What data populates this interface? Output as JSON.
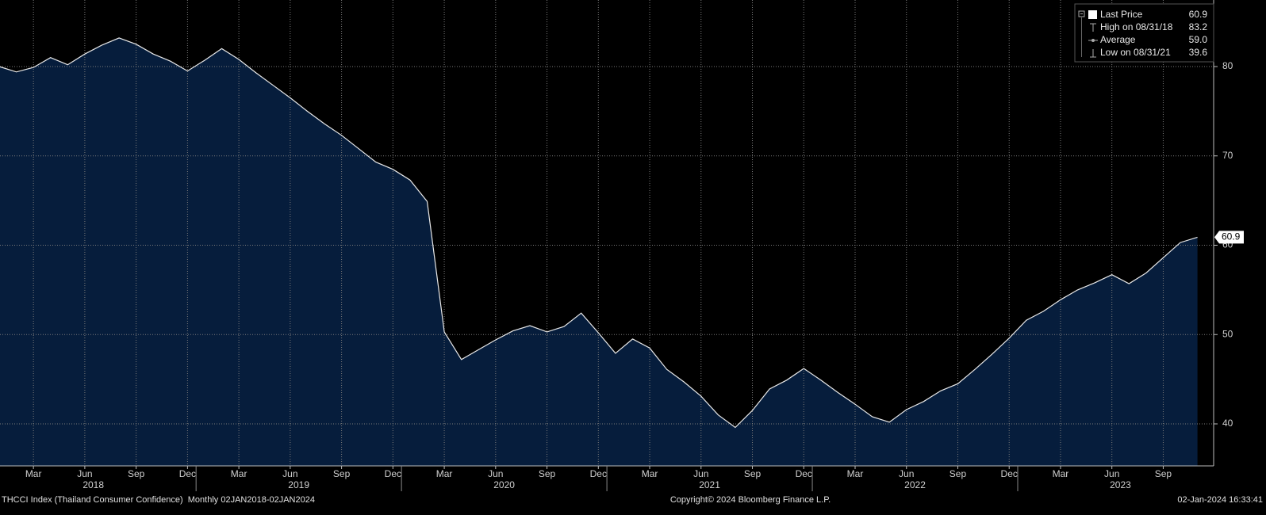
{
  "chart_data": {
    "type": "area",
    "x": [
      "2018-01",
      "2018-02",
      "2018-03",
      "2018-04",
      "2018-05",
      "2018-06",
      "2018-07",
      "2018-08",
      "2018-09",
      "2018-10",
      "2018-11",
      "2018-12",
      "2019-01",
      "2019-02",
      "2019-03",
      "2019-04",
      "2019-05",
      "2019-06",
      "2019-07",
      "2019-08",
      "2019-09",
      "2019-10",
      "2019-11",
      "2019-12",
      "2020-01",
      "2020-02",
      "2020-03",
      "2020-04",
      "2020-05",
      "2020-06",
      "2020-07",
      "2020-08",
      "2020-09",
      "2020-10",
      "2020-11",
      "2020-12",
      "2021-01",
      "2021-02",
      "2021-03",
      "2021-04",
      "2021-05",
      "2021-06",
      "2021-07",
      "2021-08",
      "2021-09",
      "2021-10",
      "2021-11",
      "2021-12",
      "2022-01",
      "2022-02",
      "2022-03",
      "2022-04",
      "2022-05",
      "2022-06",
      "2022-07",
      "2022-08",
      "2022-09",
      "2022-10",
      "2022-11",
      "2022-12",
      "2023-01",
      "2023-02",
      "2023-03",
      "2023-04",
      "2023-05",
      "2023-06",
      "2023-07",
      "2023-08",
      "2023-09",
      "2023-10",
      "2023-11"
    ],
    "series": [
      {
        "name": "Last Price",
        "color": "#e8e8e8",
        "fill": "#061d3c",
        "values": [
          80.0,
          79.4,
          79.9,
          81.0,
          80.2,
          81.4,
          82.4,
          83.2,
          82.5,
          81.4,
          80.6,
          79.5,
          80.7,
          82.0,
          80.8,
          79.3,
          77.9,
          76.5,
          75.0,
          73.6,
          72.3,
          70.8,
          69.3,
          68.5,
          67.3,
          64.9,
          50.3,
          47.2,
          48.3,
          49.4,
          50.4,
          51.0,
          50.3,
          50.9,
          52.4,
          50.2,
          47.9,
          49.5,
          48.5,
          46.1,
          44.7,
          43.1,
          41.0,
          39.6,
          41.5,
          43.9,
          44.9,
          46.2,
          44.9,
          43.5,
          42.2,
          40.8,
          40.2,
          41.6,
          42.5,
          43.7,
          44.5,
          46.1,
          47.8,
          49.6,
          51.6,
          52.6,
          53.9,
          55.0,
          55.8,
          56.7,
          55.7,
          56.9,
          58.6,
          60.3,
          60.9
        ]
      }
    ],
    "ylim": [
      35.3,
      87.45
    ],
    "yticks": [
      40,
      50,
      60,
      70,
      80
    ],
    "grid": true,
    "xticks": [
      {
        "value": "2018-03",
        "label": "Mar"
      },
      {
        "value": "2018-06",
        "label": "Jun"
      },
      {
        "value": "2018-09",
        "label": "Sep"
      },
      {
        "value": "2018-12",
        "label": "Dec"
      },
      {
        "value": "2019-03",
        "label": "Mar"
      },
      {
        "value": "2019-06",
        "label": "Jun"
      },
      {
        "value": "2019-09",
        "label": "Sep"
      },
      {
        "value": "2019-12",
        "label": "Dec"
      },
      {
        "value": "2020-03",
        "label": "Mar"
      },
      {
        "value": "2020-06",
        "label": "Jun"
      },
      {
        "value": "2020-09",
        "label": "Sep"
      },
      {
        "value": "2020-12",
        "label": "Dec"
      },
      {
        "value": "2021-03",
        "label": "Mar"
      },
      {
        "value": "2021-06",
        "label": "Jun"
      },
      {
        "value": "2021-09",
        "label": "Sep"
      },
      {
        "value": "2021-12",
        "label": "Dec"
      },
      {
        "value": "2022-03",
        "label": "Mar"
      },
      {
        "value": "2022-06",
        "label": "Jun"
      },
      {
        "value": "2022-09",
        "label": "Sep"
      },
      {
        "value": "2022-12",
        "label": "Dec"
      },
      {
        "value": "2023-03",
        "label": "Mar"
      },
      {
        "value": "2023-06",
        "label": "Jun"
      },
      {
        "value": "2023-09",
        "label": "Sep"
      }
    ],
    "years": [
      "2018",
      "2019",
      "2020",
      "2021",
      "2022",
      "2023"
    ],
    "legend": {
      "names": [
        "Last Price",
        "High on 08/31/18",
        "Average",
        "Low on 08/31/21"
      ],
      "values": [
        60.9,
        83.2,
        59,
        39.6
      ],
      "value_labels": [
        "60.9",
        "83.2",
        "59.0",
        "39.6"
      ]
    },
    "last_value_tag": {
      "value": 60.9,
      "label": "60.9"
    },
    "footer": {
      "left": "THCCI Index (Thailand Consumer Confidence)  Monthly 02JAN2018-02JAN2024",
      "center": "Copyright© 2024 Bloomberg Finance L.P.",
      "right": "02-Jan-2024 16:33:41"
    }
  }
}
